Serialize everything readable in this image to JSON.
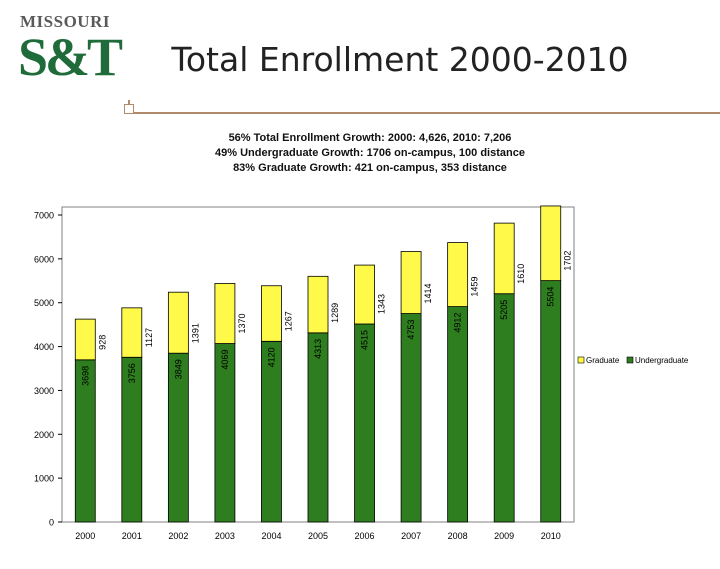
{
  "header": {
    "logo_top": "MISSOURI",
    "logo_main": "S&T",
    "title": "Total Enrollment 2000-2010"
  },
  "summary": {
    "line1": "56% Total Enrollment Growth:  2000: 4,626, 2010: 7,206",
    "line2": "49% Undergraduate Growth: 1706 on-campus, 100 distance",
    "line3": "83% Graduate Growth: 421 on-campus, 353 distance"
  },
  "colors": {
    "undergraduate": "#2e7d1e",
    "graduate": "#fff94a",
    "plot_background": "#ffffff"
  },
  "chart_data": {
    "type": "bar",
    "stacked": true,
    "categories": [
      "2000",
      "2001",
      "2002",
      "2003",
      "2004",
      "2005",
      "2006",
      "2007",
      "2008",
      "2009",
      "2010"
    ],
    "series": [
      {
        "name": "Undergraduate",
        "values": [
          3698,
          3756,
          3849,
          4069,
          4120,
          4313,
          4515,
          4753,
          4912,
          5205,
          5504
        ]
      },
      {
        "name": "Graduate",
        "values": [
          928,
          1127,
          1391,
          1370,
          1267,
          1289,
          1343,
          1414,
          1459,
          1610,
          1702
        ]
      }
    ],
    "yticks": [
      "0",
      "1000",
      "2000",
      "3000",
      "4000",
      "5000",
      "6000",
      "7000"
    ],
    "ylim": [
      0,
      7000
    ],
    "legend_position": "right",
    "legend_labels": [
      "Graduate",
      "Undergraduate"
    ],
    "grid": false
  }
}
